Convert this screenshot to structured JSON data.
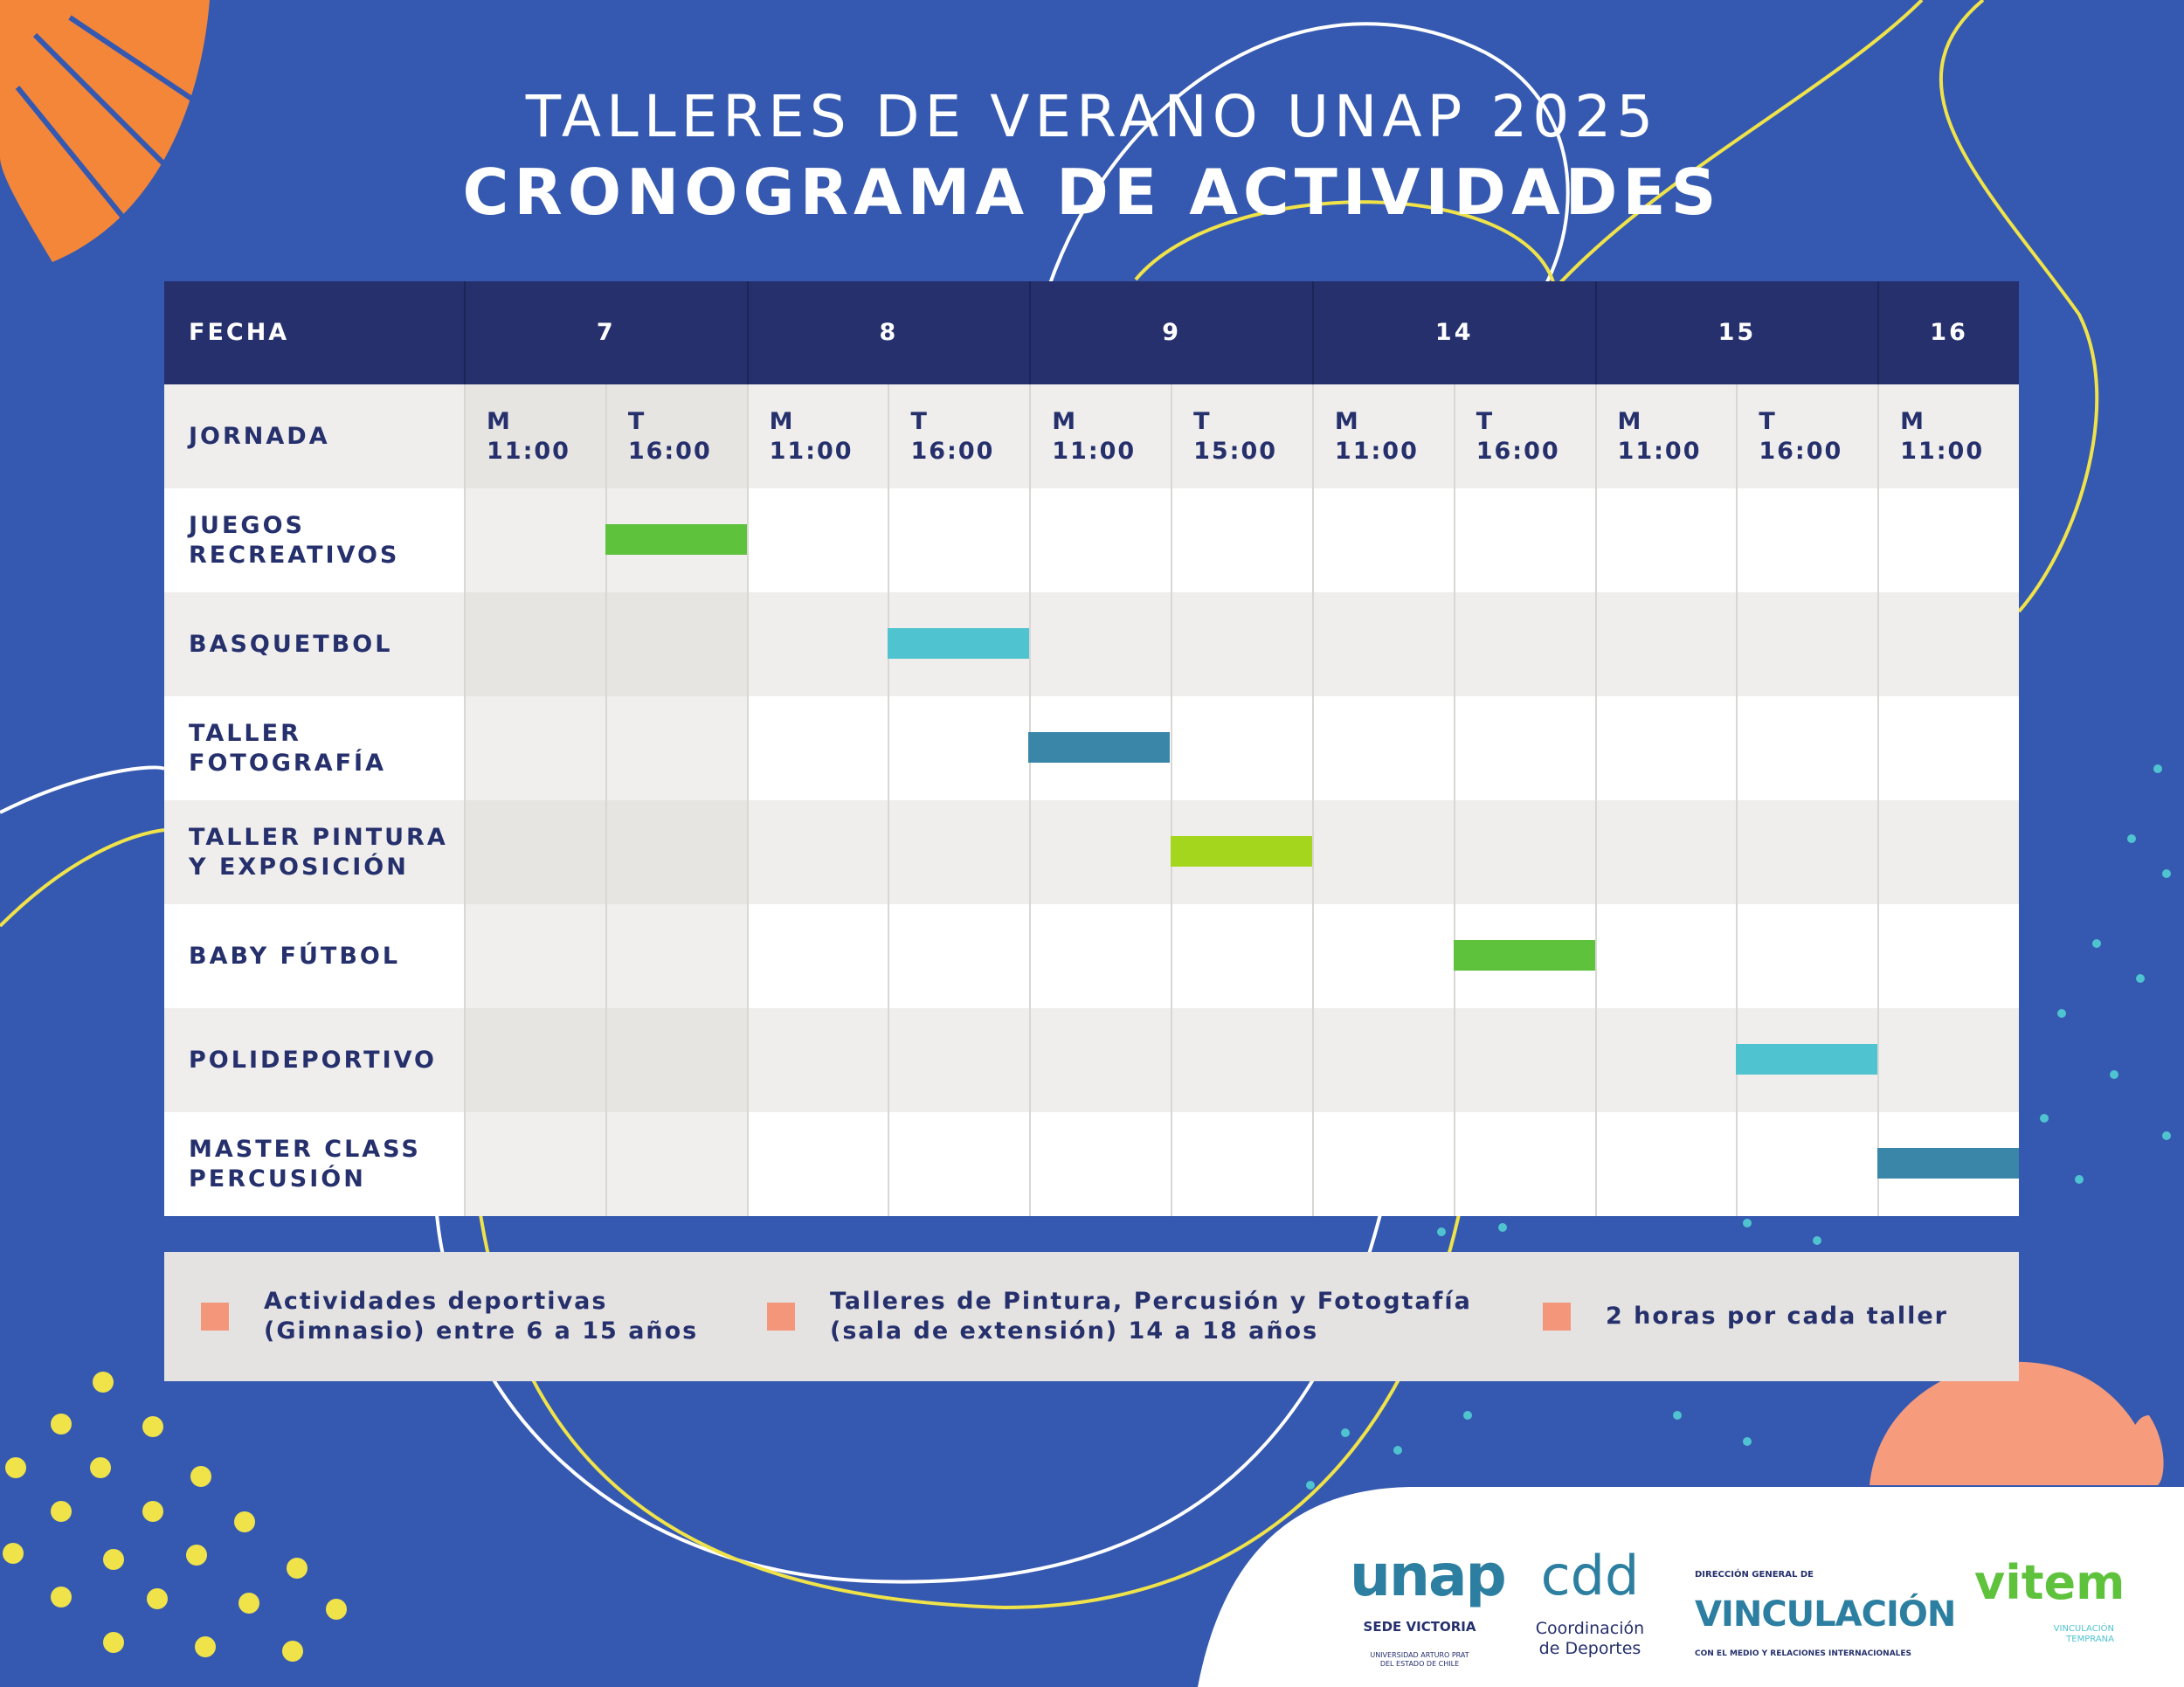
{
  "header": {
    "subtitle": "TALLERES DE VERANO UNAP 2025",
    "title": "CRONOGRAMA DE ACTIVIDADES"
  },
  "table": {
    "header": {
      "label": "FECHA",
      "dates": [
        "7",
        "8",
        "9",
        "14",
        "15",
        "16"
      ]
    },
    "jornada": {
      "label": "JORNADA",
      "slots": [
        {
          "shift": "M",
          "time": "11:00"
        },
        {
          "shift": "T",
          "time": "16:00"
        },
        {
          "shift": "M",
          "time": "11:00"
        },
        {
          "shift": "T",
          "time": "16:00"
        },
        {
          "shift": "M",
          "time": "11:00"
        },
        {
          "shift": "T",
          "time": "15:00"
        },
        {
          "shift": "M",
          "time": "11:00"
        },
        {
          "shift": "T",
          "time": "16:00"
        },
        {
          "shift": "M",
          "time": "11:00"
        },
        {
          "shift": "T",
          "time": "16:00"
        },
        {
          "shift": "M",
          "time": "11:00"
        }
      ]
    },
    "rows": [
      {
        "label": "JUEGOS\nRECREATIVOS"
      },
      {
        "label": "BASQUETBOL"
      },
      {
        "label": "TALLER\nFOTOGRAFÍA"
      },
      {
        "label": "TALLER PINTURA\nY EXPOSICIÓN"
      },
      {
        "label": "BABY FÚTBOL"
      },
      {
        "label": "POLIDEPORTIVO"
      },
      {
        "label": "MASTER CLASS\nPERCUSIÓN"
      }
    ]
  },
  "legend": [
    "Actividades deportivas\n(Gimnasio) entre 6 a 15 años",
    "Talleres de Pintura, Percusión y Fotogtafía\n(sala de extensión) 14 a 18 años",
    "2 horas por cada taller"
  ],
  "logos": {
    "unap": "unap",
    "unap_sub": "SEDE VICTORIA",
    "unap_small": "UNIVERSIDAD ARTURO PRAT\nDEL ESTADO DE CHILE",
    "cdd": "cdd",
    "cdd_sub": "Coordinación\nde Deportes",
    "vinc_top": "DIRECCIÓN GENERAL DE",
    "vinc": "VINCULACIÓN",
    "vinc_sub": "CON EL MEDIO Y RELACIONES INTERNACIONALES",
    "vitem": "vitem",
    "vitem_sub": "VINCULACIÓN\nTEMPRANA"
  }
}
